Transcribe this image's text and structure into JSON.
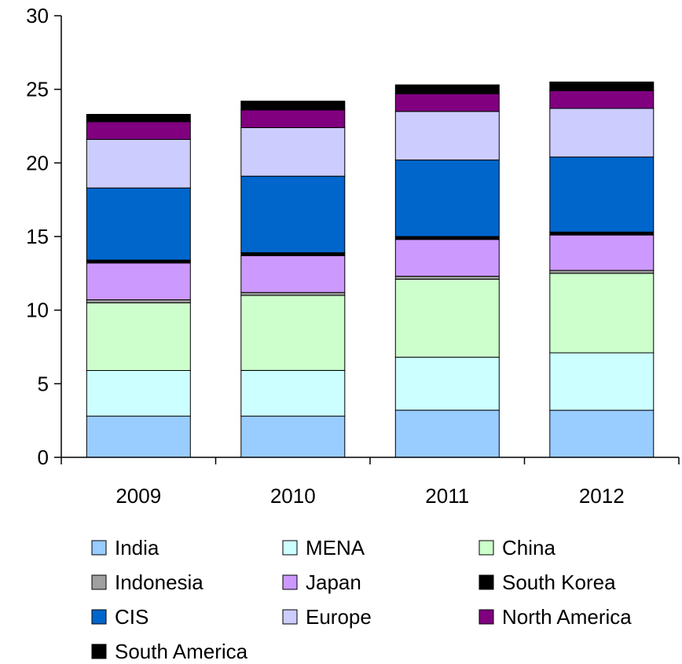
{
  "chart_data": {
    "type": "bar",
    "stacked": true,
    "categories": [
      "2009",
      "2010",
      "2011",
      "2012"
    ],
    "ylim": [
      0,
      30
    ],
    "yticks": [
      0,
      5,
      10,
      15,
      20,
      25,
      30
    ],
    "grid": false,
    "legend_position": "bottom",
    "series": [
      {
        "name": "India",
        "color": "#99CCFF",
        "values": [
          2.8,
          2.8,
          3.2,
          3.2
        ]
      },
      {
        "name": "MENA",
        "color": "#CCFFFF",
        "values": [
          3.1,
          3.1,
          3.6,
          3.9
        ]
      },
      {
        "name": "China",
        "color": "#CCFFCC",
        "values": [
          4.6,
          5.1,
          5.3,
          5.4
        ]
      },
      {
        "name": "Indonesia",
        "color": "#A0A0A0",
        "values": [
          0.2,
          0.2,
          0.2,
          0.2
        ]
      },
      {
        "name": "Japan",
        "color": "#CC99FF",
        "values": [
          2.5,
          2.5,
          2.5,
          2.4
        ]
      },
      {
        "name": "South Korea",
        "color": "#000000",
        "values": [
          0.2,
          0.2,
          0.2,
          0.2
        ]
      },
      {
        "name": "CIS",
        "color": "#0066CC",
        "values": [
          4.9,
          5.2,
          5.2,
          5.1
        ]
      },
      {
        "name": "Europe",
        "color": "#CCCCFF",
        "values": [
          3.3,
          3.3,
          3.3,
          3.3
        ]
      },
      {
        "name": "North America",
        "color": "#800080",
        "values": [
          1.2,
          1.2,
          1.2,
          1.2
        ]
      },
      {
        "name": "South America",
        "color": "#000000",
        "values": [
          0.5,
          0.6,
          0.6,
          0.6
        ]
      }
    ]
  }
}
